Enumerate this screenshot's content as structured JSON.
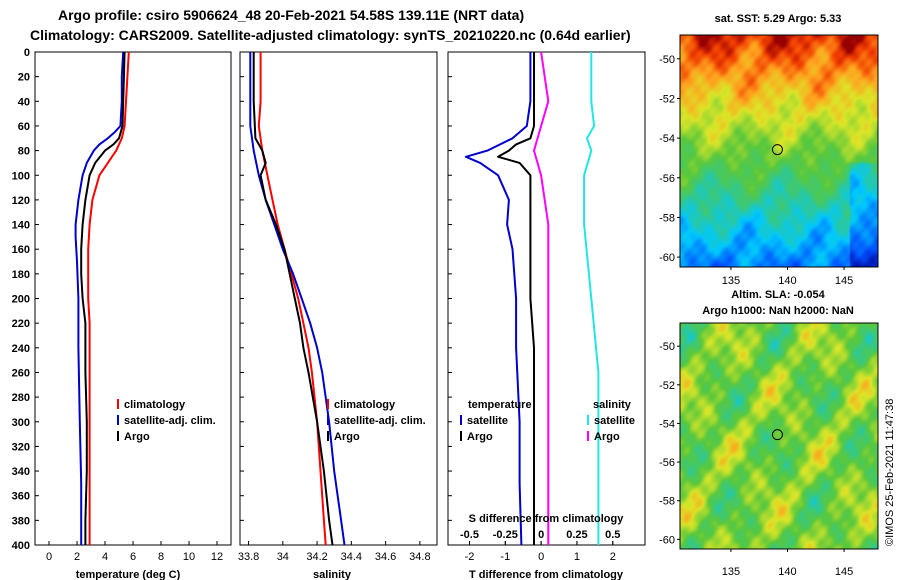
{
  "title": {
    "line1": "Argo profile: csiro 5906624_48 20-Feb-2021 54.58S 139.11E (NRT data)",
    "line2": "Climatology: CARS2009. Satellite-adjusted climatology: synTS_20210220.nc (0.64d earlier)"
  },
  "colors": {
    "red": "#ff0000",
    "blue": "#0000cc",
    "black": "#000000",
    "magenta": "#ff00ff",
    "cyan": "#22e6e6"
  },
  "map_top": {
    "title": "sat. SST: 5.29 Argo: 5.33"
  },
  "map_bottom": {
    "title_line1": "Altim. SLA: -0.054",
    "title_line2": "Argo h1000: NaN h2000: NaN"
  },
  "footer_stamp": "©IMOS 25-Feb-2021 11:47:38",
  "chart_data": [
    {
      "type": "line",
      "id": "temperature",
      "xlabel": "temperature (deg C)",
      "ylabel": "",
      "xlim": [
        -1,
        13
      ],
      "ylim": [
        0,
        400
      ],
      "y_inverted": true,
      "x_ticks": [
        0,
        2,
        4,
        6,
        8,
        10,
        12
      ],
      "y_ticks": [
        0,
        20,
        40,
        60,
        80,
        100,
        120,
        140,
        160,
        180,
        200,
        220,
        240,
        260,
        280,
        300,
        320,
        340,
        360,
        380,
        400
      ],
      "legend": [
        "climatology",
        "satellite-adj. clim.",
        "Argo"
      ],
      "series": [
        {
          "name": "climatology",
          "color": "red",
          "depth": [
            0,
            20,
            40,
            60,
            70,
            80,
            90,
            100,
            120,
            140,
            160,
            180,
            200,
            220,
            260,
            300,
            340,
            380,
            400
          ],
          "values": [
            5.7,
            5.6,
            5.5,
            5.4,
            5.2,
            4.8,
            4.2,
            3.6,
            3.1,
            2.9,
            2.8,
            2.8,
            2.8,
            2.9,
            2.9,
            2.9,
            2.9,
            2.9,
            2.9
          ]
        },
        {
          "name": "satellite-adj. clim.",
          "color": "blue",
          "depth": [
            0,
            20,
            40,
            60,
            65,
            70,
            75,
            80,
            90,
            100,
            120,
            140,
            150,
            170,
            200,
            240,
            300,
            350,
            400
          ],
          "values": [
            5.3,
            5.2,
            5.2,
            5.1,
            4.7,
            4.2,
            3.6,
            3.2,
            2.7,
            2.4,
            2.1,
            1.9,
            1.9,
            2.0,
            2.1,
            2.1,
            2.2,
            2.3,
            2.3
          ]
        },
        {
          "name": "Argo",
          "color": "black",
          "depth": [
            0,
            20,
            40,
            60,
            70,
            75,
            80,
            90,
            100,
            120,
            140,
            160,
            180,
            200,
            220,
            260,
            300,
            340,
            380,
            400
          ],
          "values": [
            5.4,
            5.35,
            5.3,
            5.25,
            5.0,
            4.6,
            4.0,
            3.3,
            2.9,
            2.6,
            2.4,
            2.3,
            2.3,
            2.4,
            2.6,
            2.6,
            2.7,
            2.7,
            2.6,
            2.6
          ]
        }
      ]
    },
    {
      "type": "line",
      "id": "salinity",
      "xlabel": "salinity",
      "xlim": [
        33.75,
        34.9
      ],
      "ylim": [
        0,
        400
      ],
      "y_inverted": true,
      "x_ticks": [
        33.8,
        34,
        34.2,
        34.4,
        34.6,
        34.8
      ],
      "legend": [
        "climatology",
        "satellite-adj. clim.",
        "Argo"
      ],
      "series": [
        {
          "name": "climatology",
          "color": "red",
          "depth": [
            0,
            40,
            60,
            80,
            100,
            120,
            140,
            160,
            180,
            200,
            220,
            240,
            260,
            300,
            340,
            380,
            400
          ],
          "values": [
            33.87,
            33.87,
            33.86,
            33.88,
            33.91,
            33.94,
            33.97,
            34.01,
            34.05,
            34.09,
            34.12,
            34.15,
            34.17,
            34.2,
            34.22,
            34.24,
            34.25
          ]
        },
        {
          "name": "satellite-adj. clim.",
          "color": "blue",
          "depth": [
            0,
            40,
            60,
            80,
            100,
            120,
            140,
            160,
            180,
            200,
            220,
            240,
            260,
            300,
            340,
            380,
            400
          ],
          "values": [
            33.81,
            33.81,
            33.81,
            33.83,
            33.86,
            33.9,
            33.95,
            34.0,
            34.06,
            34.11,
            34.16,
            34.2,
            34.23,
            34.27,
            34.3,
            34.34,
            34.36
          ]
        },
        {
          "name": "Argo",
          "color": "black",
          "depth": [
            0,
            40,
            70,
            80,
            90,
            100,
            120,
            140,
            160,
            180,
            200,
            220,
            240,
            260,
            300,
            340,
            380,
            400
          ],
          "values": [
            33.83,
            33.83,
            33.84,
            33.88,
            33.9,
            33.87,
            33.9,
            33.96,
            34.01,
            34.04,
            34.07,
            34.1,
            34.12,
            34.15,
            34.2,
            34.24,
            34.27,
            34.29
          ]
        }
      ]
    },
    {
      "type": "line",
      "id": "difference",
      "xlabel": "T difference from climatology",
      "xlim": [
        -2.6,
        2.9
      ],
      "ylim": [
        0,
        400
      ],
      "y_inverted": true,
      "x_ticks": [
        -2,
        -1,
        0,
        1,
        2
      ],
      "s_label": "S difference from climatology",
      "s_ticks": [
        "-0.5",
        "-0.25",
        "0",
        "0.25",
        "0.5"
      ],
      "legend_temperature": {
        "header": "temperature",
        "items": [
          "satellite",
          "Argo"
        ]
      },
      "legend_salinity": {
        "header": "salinity",
        "items": [
          "satellite",
          "Argo"
        ]
      },
      "series": [
        {
          "name": "temperature satellite",
          "color": "blue",
          "depth": [
            0,
            40,
            60,
            70,
            80,
            85,
            90,
            100,
            120,
            140,
            160,
            180,
            200,
            240,
            300,
            350,
            400
          ],
          "values": [
            -0.3,
            -0.3,
            -0.4,
            -0.8,
            -1.5,
            -2.1,
            -1.7,
            -1.2,
            -0.9,
            -0.95,
            -0.8,
            -0.75,
            -0.7,
            -0.7,
            -0.6,
            -0.6,
            -0.55
          ]
        },
        {
          "name": "temperature Argo",
          "color": "black",
          "depth": [
            0,
            40,
            60,
            70,
            75,
            80,
            85,
            90,
            100,
            120,
            160,
            200,
            240,
            300,
            340,
            380,
            400
          ],
          "values": [
            -0.2,
            -0.2,
            -0.2,
            -0.3,
            -0.7,
            -0.9,
            -1.2,
            -0.6,
            -0.3,
            -0.3,
            -0.3,
            -0.3,
            -0.2,
            -0.2,
            -0.2,
            -0.2,
            -0.2
          ]
        },
        {
          "name": "salinity satellite",
          "color": "cyan",
          "depth": [
            0,
            40,
            60,
            70,
            80,
            100,
            140,
            200,
            260,
            300,
            340,
            380,
            400
          ],
          "values": [
            0.35,
            0.35,
            0.37,
            0.32,
            0.35,
            0.3,
            0.3,
            0.35,
            0.4,
            0.4,
            0.4,
            0.4,
            0.4
          ]
        },
        {
          "name": "salinity Argo",
          "color": "magenta",
          "depth": [
            0,
            40,
            60,
            80,
            100,
            140,
            200,
            260,
            300,
            340,
            380,
            400
          ],
          "values": [
            0.0,
            0.05,
            0.0,
            -0.05,
            0.0,
            0.05,
            0.05,
            0.05,
            0.05,
            0.05,
            0.05,
            0.05
          ]
        }
      ]
    },
    {
      "type": "heatmap",
      "id": "sst_map",
      "title": "sat. SST: 5.29 Argo: 5.33",
      "xlim": [
        130.5,
        148
      ],
      "ylim": [
        -60.5,
        -48.8
      ],
      "x_ticks": [
        135,
        140,
        145
      ],
      "y_ticks": [
        -50,
        -52,
        -54,
        -56,
        -58,
        -60
      ],
      "argo_position": [
        139.11,
        -54.58
      ]
    },
    {
      "type": "heatmap",
      "id": "sla_map",
      "title": "Altim. SLA: -0.054",
      "xlim": [
        130.5,
        148
      ],
      "ylim": [
        -60.5,
        -48.8
      ],
      "x_ticks": [
        135,
        140,
        145
      ],
      "y_ticks": [
        -50,
        -52,
        -54,
        -56,
        -58,
        -60
      ],
      "argo_position": [
        139.11,
        -54.58
      ]
    }
  ]
}
